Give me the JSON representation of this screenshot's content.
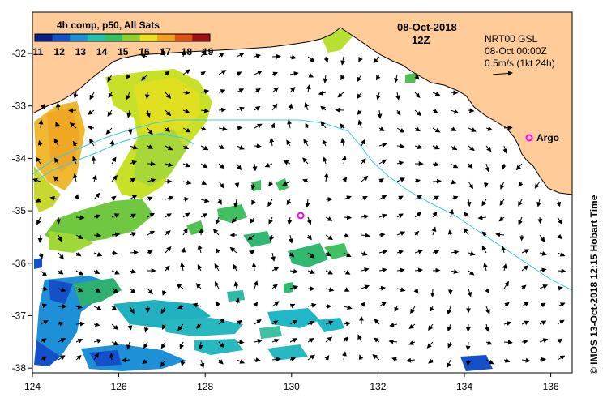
{
  "title": {
    "date": "08-Oct-2018",
    "hour": "12Z"
  },
  "colorbar": {
    "title": "4h comp, p50, All Sats",
    "ticks": [
      "11",
      "12",
      "13",
      "14",
      "15",
      "16",
      "17",
      "18",
      "19"
    ],
    "colors": [
      "#0a1f8a",
      "#1450c8",
      "#1e90d8",
      "#1fc0b0",
      "#30c060",
      "#8cd030",
      "#e8e020",
      "#f0a020",
      "#e05010",
      "#a01010"
    ]
  },
  "info": {
    "line1": "NRT00 GSL",
    "line2": "08-Oct 00:00Z",
    "line3": "0.5m/s (1kt 24h)"
  },
  "argo": {
    "label": "Argo",
    "color": "#ff00ff"
  },
  "credit": "© IMOS 13-Oct-2018 12:15 Hobart Time",
  "axes": {
    "xticks": [
      "124",
      "126",
      "128",
      "130",
      "132",
      "134",
      "136"
    ],
    "yticks": [
      "-32",
      "-33",
      "-34",
      "-35",
      "-36",
      "-37",
      "-38"
    ]
  },
  "colors": {
    "land": "#ffcc99",
    "coast": "#000000",
    "bathymetry": "#33ccee"
  }
}
